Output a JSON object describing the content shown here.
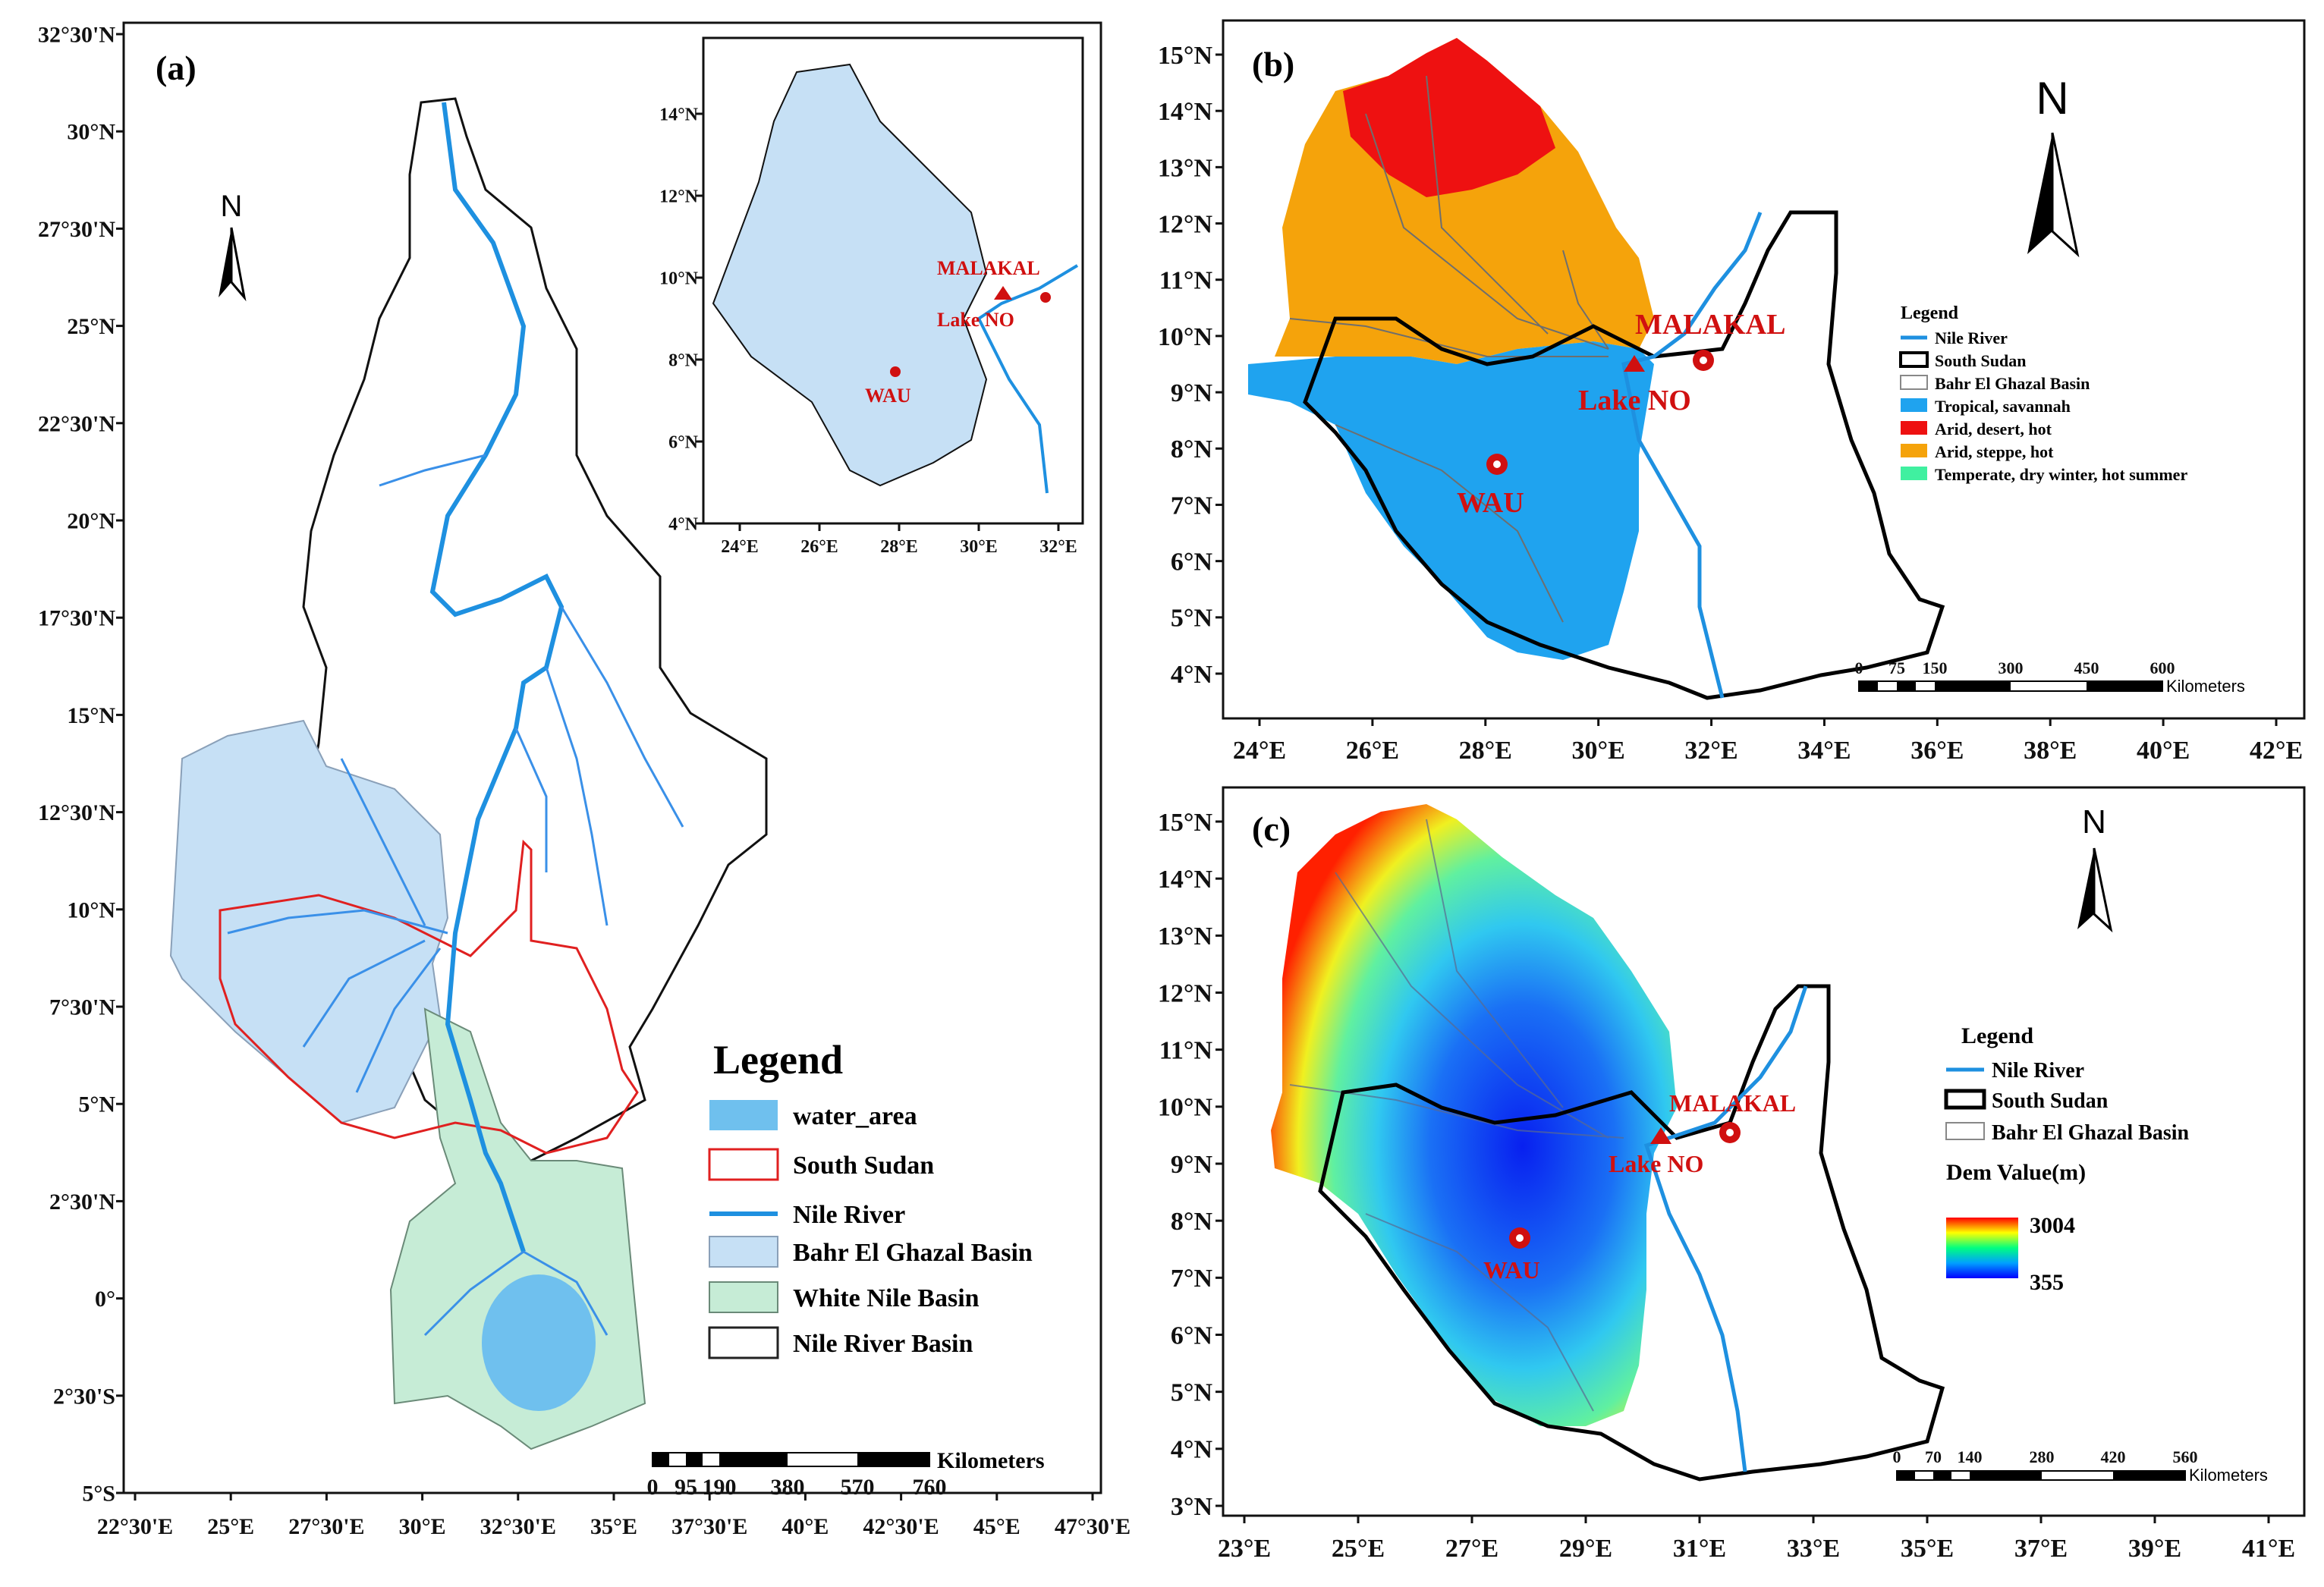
{
  "panel_a": {
    "label": "(a)",
    "north": "N",
    "lat_ticks": [
      "32°30'N",
      "30°N",
      "27°30'N",
      "25°N",
      "22°30'N",
      "20°N",
      "17°30'N",
      "15°N",
      "12°30'N",
      "10°N",
      "7°30'N",
      "5°N",
      "2°30'N",
      "0°",
      "2°30'S",
      "5°S"
    ],
    "lon_ticks": [
      "22°30'E",
      "25°E",
      "27°30'E",
      "30°E",
      "32°30'E",
      "35°E",
      "37°30'E",
      "40°E",
      "42°30'E",
      "45°E",
      "47°30'E"
    ],
    "legend": {
      "title": "Legend",
      "items": [
        {
          "label": "water_area",
          "color": "#6fc0ee"
        },
        {
          "label": "South Sudan",
          "color": "#e02020"
        },
        {
          "label": "Nile River",
          "color": "#1e90e0"
        },
        {
          "label": "Bahr El Ghazal Basin",
          "color": "#c6e0f5"
        },
        {
          "label": "White Nile Basin",
          "color": "#c6ecd6"
        },
        {
          "label": "Nile River Basin",
          "color": "#222222"
        }
      ]
    },
    "scale": {
      "values": [
        "0",
        "95",
        "190",
        "380",
        "570",
        "760"
      ],
      "unit": "Kilometers"
    },
    "inset": {
      "lat_ticks": [
        "14°N",
        "12°N",
        "10°N",
        "8°N",
        "6°N",
        "4°N"
      ],
      "lon_ticks": [
        "24°E",
        "26°E",
        "28°E",
        "30°E",
        "32°E"
      ],
      "places": [
        "MALAKAL",
        "Lake NO",
        "WAU"
      ]
    }
  },
  "panel_b": {
    "label": "(b)",
    "north": "N",
    "lat_ticks": [
      "15°N",
      "14°N",
      "13°N",
      "12°N",
      "11°N",
      "10°N",
      "9°N",
      "8°N",
      "7°N",
      "6°N",
      "5°N",
      "4°N"
    ],
    "lon_ticks": [
      "24°E",
      "26°E",
      "28°E",
      "30°E",
      "32°E",
      "34°E",
      "36°E",
      "38°E",
      "40°E",
      "42°E"
    ],
    "places": [
      "MALAKAL",
      "Lake NO",
      "WAU"
    ],
    "legend": {
      "title": "Legend",
      "items": [
        {
          "label": "Nile River",
          "color": "#1e90e0"
        },
        {
          "label": "South Sudan",
          "color": "#000000"
        },
        {
          "label": "Bahr El Ghazal Basin",
          "color": "#ffffff"
        },
        {
          "label": "Tropical, savannah",
          "color": "#1fa3ef"
        },
        {
          "label": "Arid, desert, hot",
          "color": "#ee1111"
        },
        {
          "label": "Arid, steppe, hot",
          "color": "#f5a30b"
        },
        {
          "label": "Temperate, dry winter, hot summer",
          "color": "#40f0a0"
        }
      ]
    },
    "scale": {
      "values": [
        "0",
        "75",
        "150",
        "300",
        "450",
        "600"
      ],
      "unit": "Kilometers"
    }
  },
  "panel_c": {
    "label": "(c)",
    "north": "N",
    "lat_ticks": [
      "15°N",
      "14°N",
      "13°N",
      "12°N",
      "11°N",
      "10°N",
      "9°N",
      "8°N",
      "7°N",
      "6°N",
      "5°N",
      "4°N",
      "3°N"
    ],
    "lon_ticks": [
      "23°E",
      "25°E",
      "27°E",
      "29°E",
      "31°E",
      "33°E",
      "35°E",
      "37°E",
      "39°E",
      "41°E"
    ],
    "places": [
      "MALAKAL",
      "Lake NO",
      "WAU"
    ],
    "legend": {
      "title": "Legend",
      "items": [
        {
          "label": "Nile River",
          "color": "#1e90e0"
        },
        {
          "label": "South Sudan",
          "color": "#000000"
        },
        {
          "label": "Bahr El Ghazal Basin",
          "color": "#ffffff"
        }
      ],
      "dem_title": "Dem Value(m)",
      "dem_max": "3004",
      "dem_min": "355"
    },
    "scale": {
      "values": [
        "0",
        "70",
        "140",
        "280",
        "420",
        "560"
      ],
      "unit": "Kilometers"
    }
  }
}
